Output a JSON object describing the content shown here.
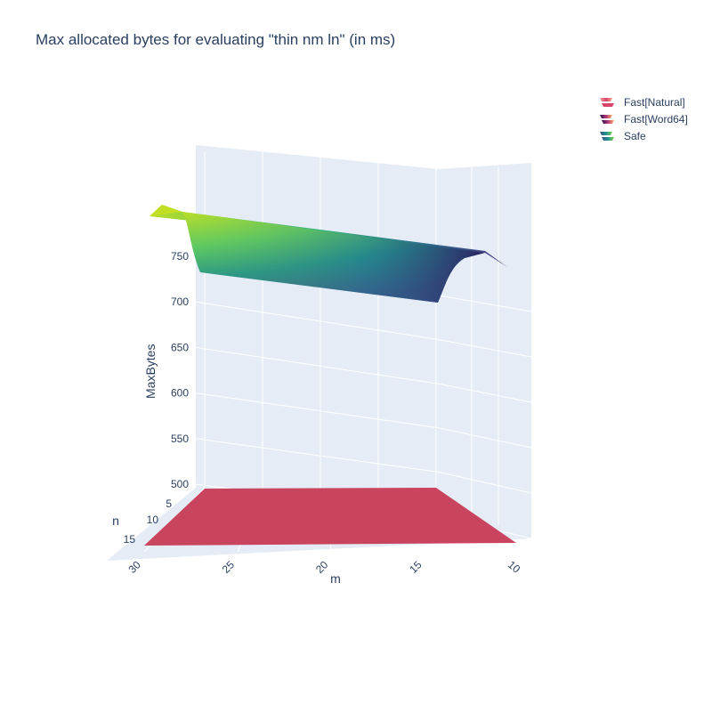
{
  "chart_data": {
    "type": "surface",
    "title": "Max allocated bytes for evaluating \"thin nm ln\" (in ms)",
    "axes": {
      "x": {
        "label": "m",
        "ticks": [
          30,
          25,
          20,
          15,
          10
        ],
        "range": [
          10,
          30
        ]
      },
      "y": {
        "label": "n",
        "ticks": [
          5,
          10,
          15
        ],
        "range": [
          1,
          16
        ]
      },
      "z": {
        "label": "MaxBytes",
        "ticks": [
          500,
          550,
          600,
          650,
          700,
          750
        ],
        "range": [
          500,
          790
        ]
      }
    },
    "legend": {
      "position": "top-right"
    },
    "series": [
      {
        "name": "Fast[Natural]",
        "colorscale": [
          "#cf4e69",
          "#c0385f",
          "#b4284f"
        ],
        "surface": {
          "m": [
            10,
            30
          ],
          "n": [
            1,
            16
          ],
          "z_constant": 500
        }
      },
      {
        "name": "Fast[Word64]",
        "colorscale": [
          "#1d1147",
          "#b5367a",
          "#fcfdbf"
        ],
        "surface": null
      },
      {
        "name": "Safe",
        "colorscale": [
          "#440154",
          "#21918c",
          "#fde725"
        ],
        "surface": {
          "m": [
            10,
            30
          ],
          "n_step_at": 2,
          "z_low_n": 790,
          "z_high_n": 752
        }
      }
    ],
    "colors": {
      "plot_bg": "#e5ecf6",
      "grid": "#ffffff",
      "text": "#2a3f5f"
    }
  }
}
